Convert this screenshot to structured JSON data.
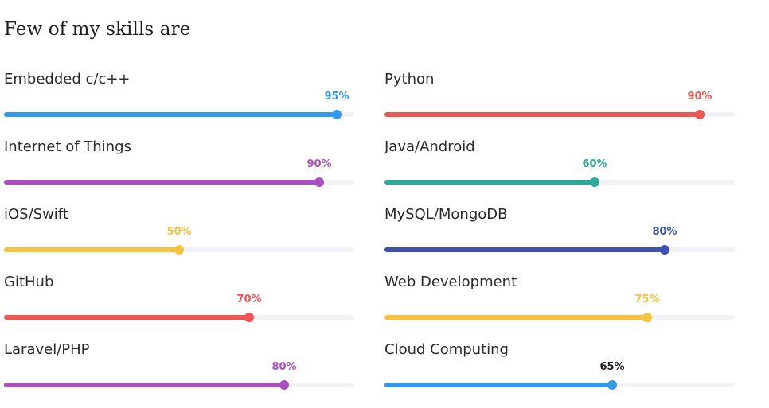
{
  "heading": "Few of my skills are",
  "skills": [
    {
      "name": "Embedded c/c++",
      "label": "95%",
      "percent": 95,
      "color": "#3399ee",
      "label_color": "#3399ee"
    },
    {
      "name": "Python",
      "label": "90%",
      "percent": 90,
      "color": "#ee5555",
      "label_color": "#ee5555"
    },
    {
      "name": "Internet of Things",
      "label": "90%",
      "percent": 90,
      "color": "#aa4fbf",
      "label_color": "#aa4fbf"
    },
    {
      "name": "Java/Android",
      "label": "60%",
      "percent": 60,
      "color": "#2ea89a",
      "label_color": "#2ea89a"
    },
    {
      "name": "iOS/Swift",
      "label": "50%",
      "percent": 50,
      "color": "#f7c23e",
      "label_color": "#f7c23e"
    },
    {
      "name": "MySQL/MongoDB",
      "label": "80%",
      "percent": 80,
      "color": "#3f51b0",
      "label_color": "#3f51b0"
    },
    {
      "name": "GitHub",
      "label": "70%",
      "percent": 70,
      "color": "#ee5555",
      "label_color": "#ee5555"
    },
    {
      "name": "Web Development",
      "label": "75%",
      "percent": 75,
      "color": "#f7c23e",
      "label_color": "#f7c23e"
    },
    {
      "name": "Laravel/PHP",
      "label": "80%",
      "percent": 80,
      "color": "#aa4fbf",
      "label_color": "#aa4fbf"
    },
    {
      "name": "Cloud Computing",
      "label": "65%",
      "percent": 65,
      "color": "#3399ee",
      "label_color": "#222222"
    }
  ]
}
